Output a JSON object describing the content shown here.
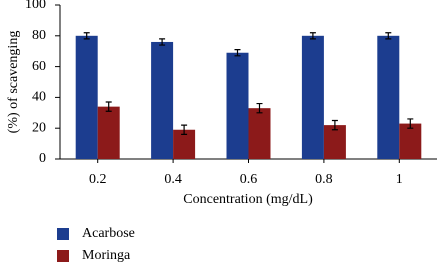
{
  "chart_data": {
    "type": "bar",
    "x_label": "Concentration (mg/dL)",
    "y_label": "(%) of scavenging",
    "categories": [
      "0.2",
      "0.4",
      "0.6",
      "0.8",
      "1"
    ],
    "series": [
      {
        "name": "Acarbose",
        "color": "#1c3d8f",
        "values": [
          80,
          76,
          69,
          80,
          80
        ],
        "errors": [
          2,
          2,
          2,
          2,
          2
        ]
      },
      {
        "name": "Moringa",
        "color": "#8c1a1a",
        "values": [
          34,
          19,
          33,
          22,
          23
        ],
        "errors": [
          3,
          3,
          3,
          3,
          3
        ]
      }
    ],
    "ylim": [
      0,
      100
    ],
    "yticks": [
      0,
      20,
      40,
      60,
      80,
      100
    ],
    "grid": false
  }
}
